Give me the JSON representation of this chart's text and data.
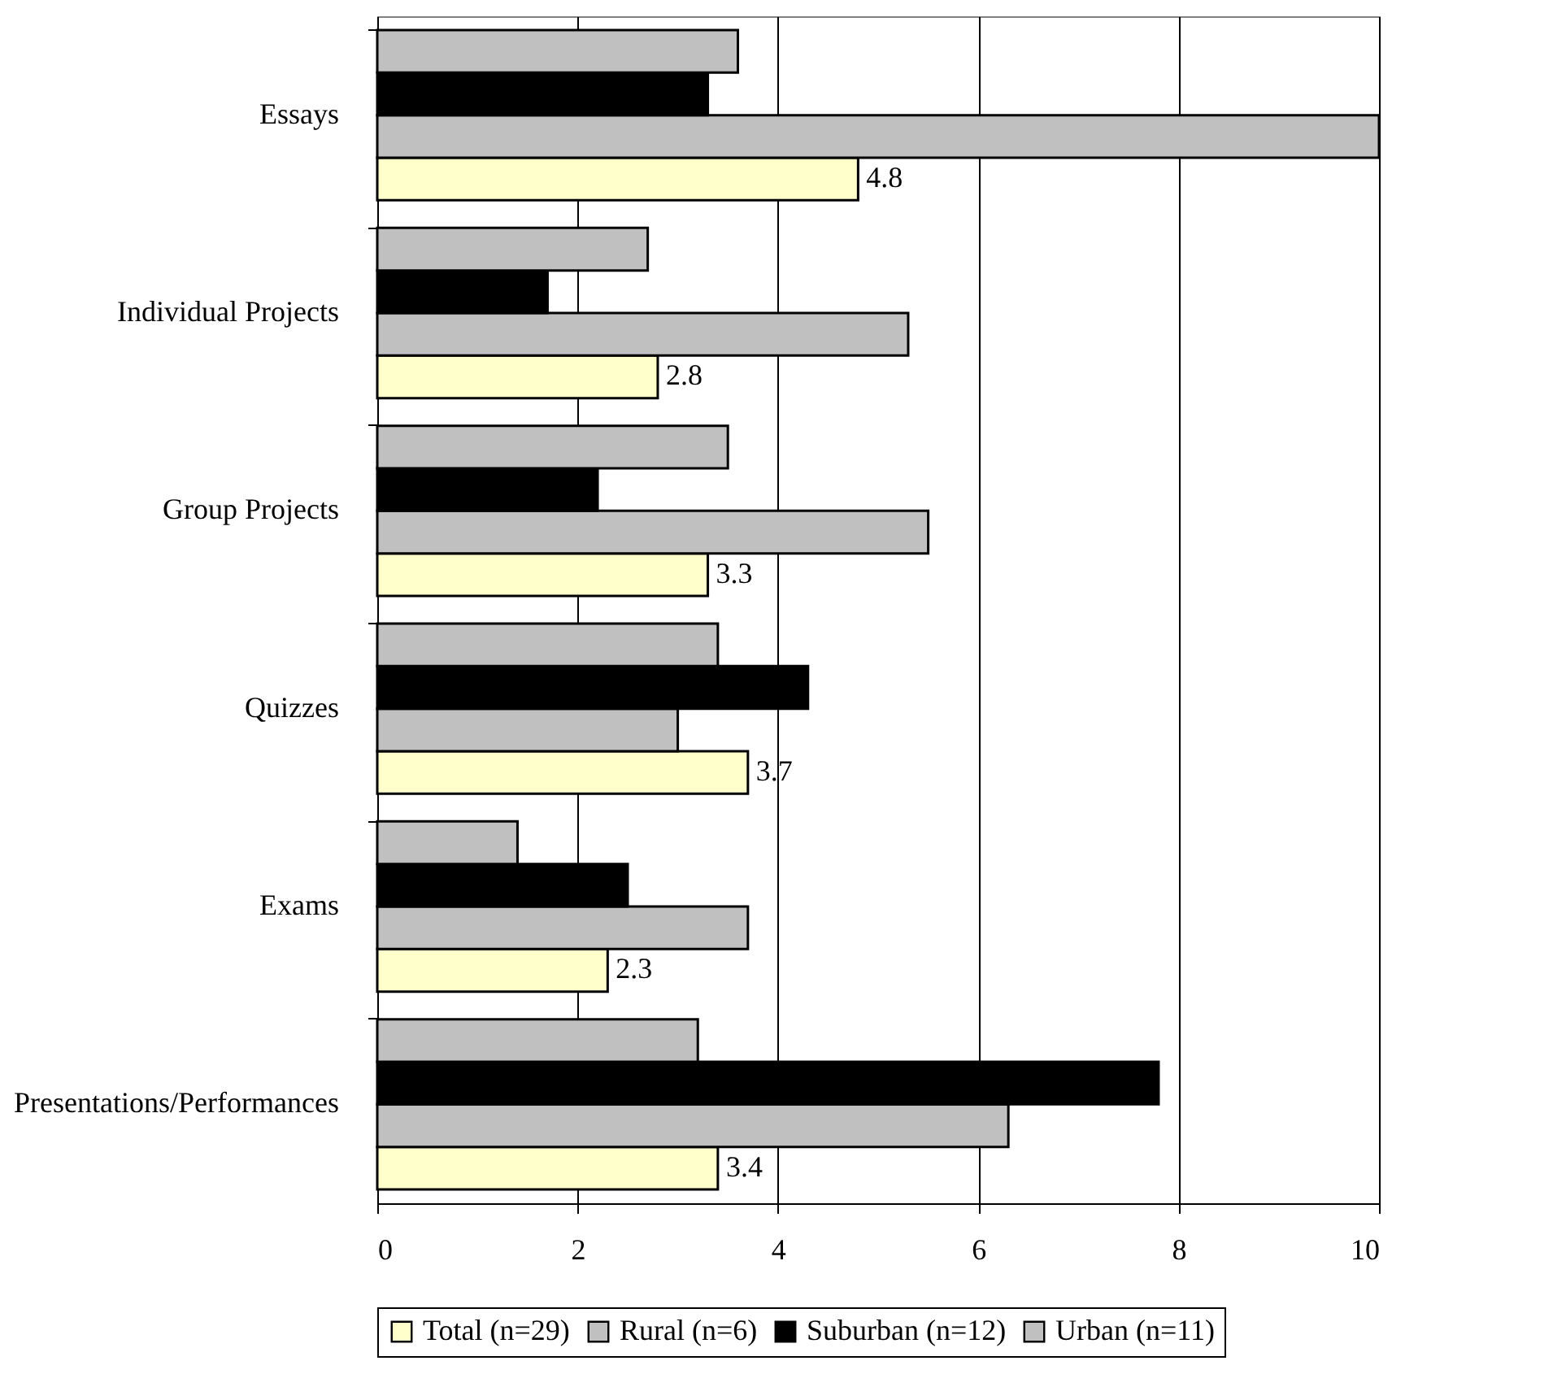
{
  "chart_data": {
    "type": "bar",
    "orientation": "horizontal",
    "categories": [
      "Essays",
      "Individual Projects",
      "Group Projects",
      "Quizzes",
      "Exams",
      "Presentations/Performances"
    ],
    "series": [
      {
        "name": "Total (n=29)",
        "color": "#ffffcc",
        "values": [
          4.8,
          2.8,
          3.3,
          3.7,
          2.3,
          3.4
        ],
        "value_labels": [
          "4.8",
          "2.8",
          "3.3",
          "3.7",
          "2.3",
          "3.4"
        ]
      },
      {
        "name": "Rural (n=6)",
        "color": "#c0c0c0",
        "values": [
          10,
          5.3,
          5.5,
          3.0,
          3.7,
          6.3
        ]
      },
      {
        "name": "Suburban (n=12)",
        "color": "#000000",
        "values": [
          3.3,
          1.7,
          2.2,
          4.3,
          2.5,
          7.8
        ]
      },
      {
        "name": "Urban (n=11)",
        "color": "#c0c0c0",
        "values": [
          3.6,
          2.7,
          3.5,
          3.4,
          1.4,
          3.2
        ]
      }
    ],
    "xlim": [
      0,
      10
    ],
    "xticks": [
      0,
      2,
      4,
      6,
      8,
      10
    ],
    "grid": "x",
    "legend": "bottom"
  }
}
